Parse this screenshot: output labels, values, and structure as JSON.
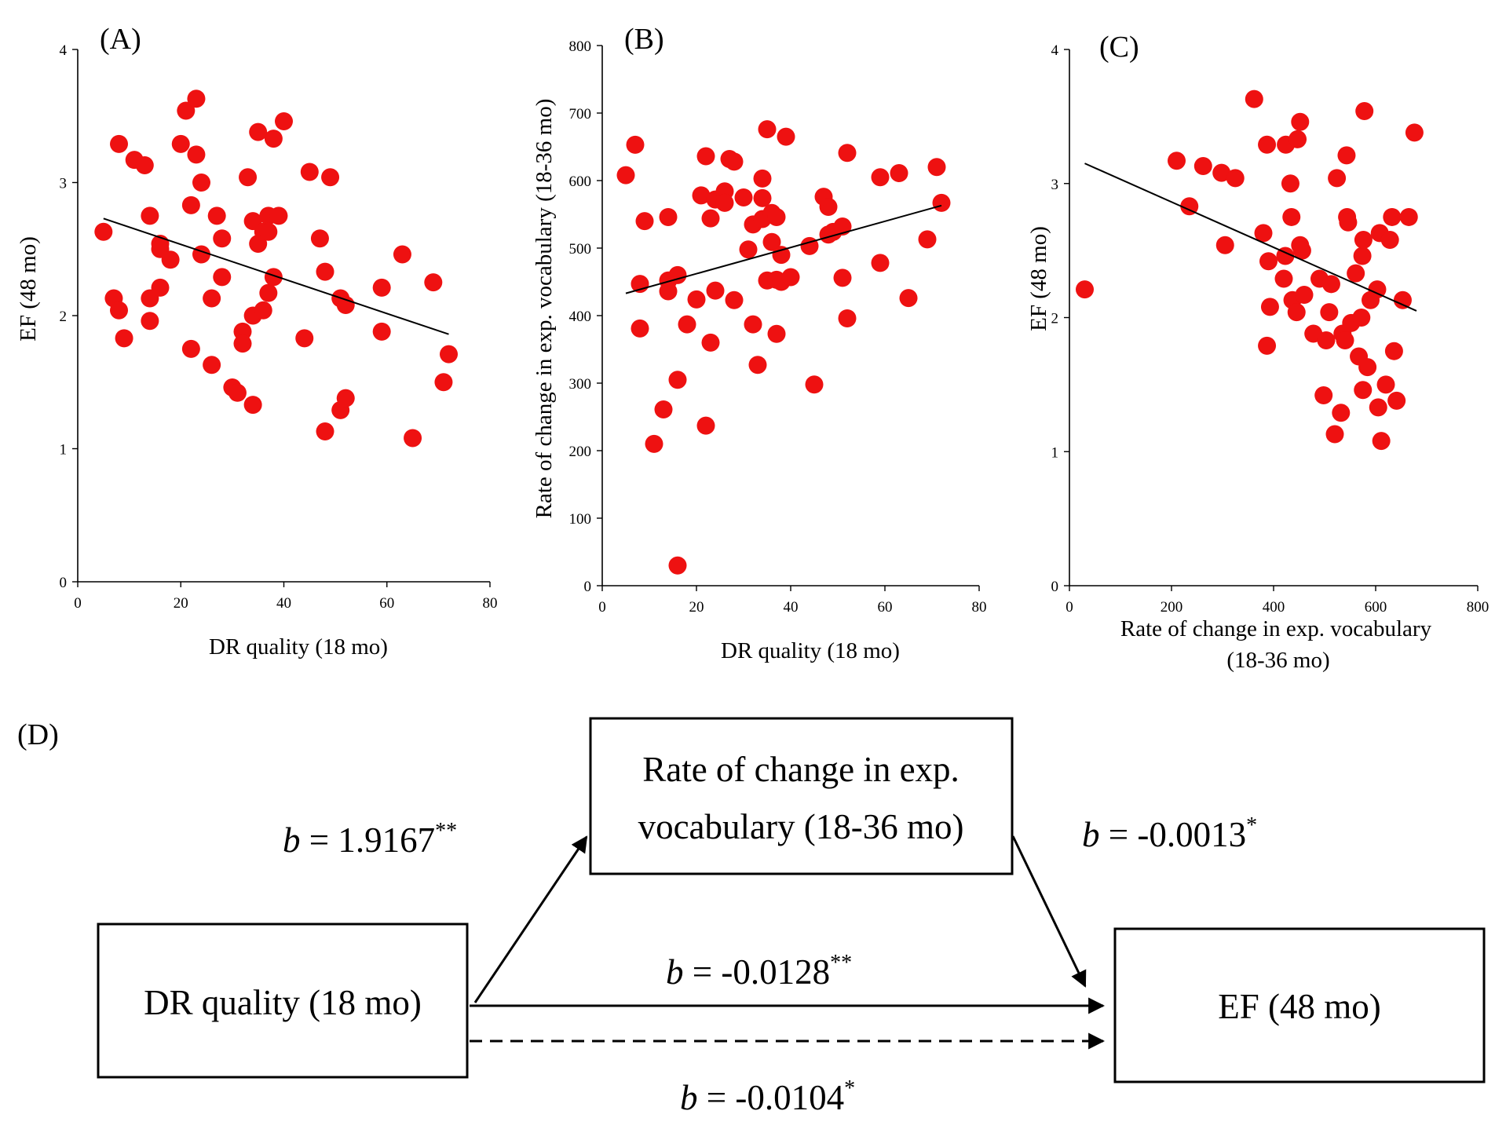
{
  "colors": {
    "point": "#ee1111",
    "line": "#000000"
  },
  "chart_data": [
    {
      "id": "A",
      "type": "scatter",
      "panel_label": "(A)",
      "xlabel": "DR quality (18 mo)",
      "ylabel": "EF (48 mo)",
      "xlim": [
        0,
        80
      ],
      "ylim": [
        0,
        4
      ],
      "xticks": [
        0,
        20,
        40,
        60,
        80
      ],
      "yticks": [
        0,
        1,
        2,
        3,
        4
      ],
      "trendline": [
        [
          5,
          2.73
        ],
        [
          72,
          1.86
        ]
      ],
      "points": [
        [
          5,
          2.63
        ],
        [
          7,
          2.13
        ],
        [
          8,
          2.04
        ],
        [
          8,
          3.29
        ],
        [
          9,
          1.83
        ],
        [
          11,
          3.17
        ],
        [
          13,
          3.13
        ],
        [
          14,
          2.75
        ],
        [
          14,
          2.13
        ],
        [
          14,
          1.96
        ],
        [
          16,
          2.54
        ],
        [
          16,
          2.5
        ],
        [
          16,
          2.21
        ],
        [
          18,
          2.42
        ],
        [
          20,
          3.29
        ],
        [
          21,
          3.54
        ],
        [
          22,
          2.83
        ],
        [
          22,
          1.75
        ],
        [
          23,
          3.21
        ],
        [
          23,
          3.63
        ],
        [
          24,
          3.0
        ],
        [
          24,
          2.46
        ],
        [
          26,
          2.13
        ],
        [
          26,
          1.63
        ],
        [
          27,
          2.75
        ],
        [
          28,
          2.58
        ],
        [
          28,
          2.29
        ],
        [
          30,
          1.46
        ],
        [
          31,
          1.42
        ],
        [
          32,
          1.88
        ],
        [
          32,
          1.79
        ],
        [
          33,
          3.04
        ],
        [
          34,
          2.71
        ],
        [
          34,
          2.0
        ],
        [
          34,
          1.33
        ],
        [
          35,
          3.38
        ],
        [
          35,
          2.54
        ],
        [
          36,
          2.04
        ],
        [
          36,
          2.63
        ],
        [
          37,
          2.75
        ],
        [
          37,
          2.63
        ],
        [
          37,
          2.17
        ],
        [
          38,
          3.33
        ],
        [
          38,
          2.29
        ],
        [
          39,
          2.75
        ],
        [
          40,
          3.46
        ],
        [
          44,
          1.83
        ],
        [
          45,
          3.08
        ],
        [
          47,
          2.58
        ],
        [
          48,
          1.13
        ],
        [
          48,
          2.33
        ],
        [
          49,
          3.04
        ],
        [
          51,
          2.13
        ],
        [
          51,
          1.29
        ],
        [
          52,
          2.08
        ],
        [
          52,
          1.38
        ],
        [
          59,
          2.21
        ],
        [
          59,
          1.88
        ],
        [
          63,
          2.46
        ],
        [
          65,
          1.08
        ],
        [
          69,
          2.25
        ],
        [
          71,
          1.5
        ],
        [
          72,
          1.71
        ]
      ]
    },
    {
      "id": "B",
      "type": "scatter",
      "panel_label": "(B)",
      "xlabel": "DR quality (18 mo)",
      "ylabel": "Rate of change in exp. vocabulary (18-36 mo)",
      "xlim": [
        0,
        80
      ],
      "ylim": [
        0,
        800
      ],
      "xticks": [
        0,
        20,
        40,
        60,
        80
      ],
      "yticks": [
        0,
        100,
        200,
        300,
        400,
        500,
        600,
        700,
        800
      ],
      "trendline": [
        [
          5,
          433
        ],
        [
          72,
          563
        ]
      ],
      "points": [
        [
          5,
          608
        ],
        [
          7,
          653
        ],
        [
          8,
          447
        ],
        [
          8,
          381
        ],
        [
          9,
          540
        ],
        [
          11,
          210
        ],
        [
          13,
          261
        ],
        [
          14,
          546
        ],
        [
          14,
          452
        ],
        [
          14,
          436
        ],
        [
          16,
          30
        ],
        [
          16,
          305
        ],
        [
          16,
          460
        ],
        [
          18,
          387
        ],
        [
          20,
          424
        ],
        [
          21,
          578
        ],
        [
          22,
          636
        ],
        [
          22,
          237
        ],
        [
          23,
          544
        ],
        [
          23,
          360
        ],
        [
          24,
          437
        ],
        [
          24,
          572
        ],
        [
          26,
          584
        ],
        [
          26,
          567
        ],
        [
          27,
          632
        ],
        [
          28,
          628
        ],
        [
          28,
          423
        ],
        [
          30,
          575
        ],
        [
          31,
          498
        ],
        [
          32,
          387
        ],
        [
          32,
          535
        ],
        [
          33,
          327
        ],
        [
          34,
          603
        ],
        [
          34,
          574
        ],
        [
          34,
          543
        ],
        [
          35,
          676
        ],
        [
          35,
          452
        ],
        [
          36,
          552
        ],
        [
          36,
          509
        ],
        [
          37,
          373
        ],
        [
          37,
          546
        ],
        [
          37,
          453
        ],
        [
          38,
          450
        ],
        [
          38,
          490
        ],
        [
          39,
          665
        ],
        [
          40,
          457
        ],
        [
          44,
          503
        ],
        [
          45,
          298
        ],
        [
          47,
          576
        ],
        [
          48,
          561
        ],
        [
          48,
          520
        ],
        [
          49,
          524
        ],
        [
          51,
          532
        ],
        [
          51,
          456
        ],
        [
          52,
          641
        ],
        [
          52,
          396
        ],
        [
          59,
          478
        ],
        [
          59,
          605
        ],
        [
          63,
          611
        ],
        [
          65,
          426
        ],
        [
          69,
          513
        ],
        [
          71,
          620
        ],
        [
          72,
          567
        ]
      ]
    },
    {
      "id": "C",
      "type": "scatter",
      "panel_label": "(C)",
      "xlabel": "Rate of change in exp. vocabulary",
      "xlabel2": "(18-36 mo)",
      "ylabel": "EF (48 mo)",
      "xlim": [
        0,
        800
      ],
      "ylim": [
        0,
        4
      ],
      "xticks": [
        0,
        200,
        400,
        600,
        800
      ],
      "yticks": [
        0,
        1,
        2,
        3,
        4
      ],
      "trendline": [
        [
          30,
          3.15
        ],
        [
          680,
          2.05
        ]
      ],
      "points": [
        [
          30,
          2.21
        ],
        [
          210,
          3.17
        ],
        [
          235,
          2.83
        ],
        [
          262,
          3.13
        ],
        [
          298,
          3.08
        ],
        [
          305,
          2.54
        ],
        [
          325,
          3.04
        ],
        [
          362,
          3.63
        ],
        [
          380,
          2.63
        ],
        [
          387,
          3.29
        ],
        [
          387,
          1.79
        ],
        [
          390,
          2.42
        ],
        [
          393,
          2.08
        ],
        [
          420,
          2.29
        ],
        [
          423,
          2.46
        ],
        [
          424,
          3.29
        ],
        [
          433,
          3.0
        ],
        [
          435,
          2.75
        ],
        [
          437,
          2.13
        ],
        [
          445,
          2.04
        ],
        [
          447,
          3.33
        ],
        [
          452,
          2.54
        ],
        [
          452,
          3.46
        ],
        [
          456,
          2.5
        ],
        [
          460,
          2.17
        ],
        [
          478,
          1.88
        ],
        [
          490,
          2.29
        ],
        [
          498,
          1.42
        ],
        [
          503,
          1.83
        ],
        [
          509,
          2.04
        ],
        [
          513,
          2.25
        ],
        [
          520,
          1.13
        ],
        [
          524,
          3.04
        ],
        [
          532,
          1.29
        ],
        [
          535,
          1.88
        ],
        [
          540,
          1.83
        ],
        [
          543,
          3.21
        ],
        [
          544,
          2.75
        ],
        [
          546,
          2.71
        ],
        [
          552,
          1.96
        ],
        [
          561,
          2.33
        ],
        [
          567,
          1.71
        ],
        [
          572,
          2.0
        ],
        [
          574,
          2.46
        ],
        [
          575,
          1.46
        ],
        [
          576,
          2.58
        ],
        [
          578,
          3.54
        ],
        [
          584,
          1.63
        ],
        [
          590,
          2.13
        ],
        [
          603,
          2.21
        ],
        [
          605,
          1.33
        ],
        [
          608,
          2.63
        ],
        [
          611,
          1.08
        ],
        [
          620,
          1.5
        ],
        [
          628,
          2.58
        ],
        [
          632,
          2.75
        ],
        [
          636,
          1.75
        ],
        [
          641,
          1.38
        ],
        [
          653,
          2.13
        ],
        [
          665,
          2.75
        ],
        [
          676,
          3.38
        ]
      ]
    }
  ],
  "mediation": {
    "panel_label": "(D)",
    "boxes": {
      "predictor": "DR quality (18 mo)",
      "mediator_line1": "Rate of change in exp.",
      "mediator_line2": "vocabulary (18-36 mo)",
      "outcome": "EF (48 mo)"
    },
    "paths": {
      "a": {
        "b": "b",
        "eq": " = 1.9167",
        "sig": "**"
      },
      "b": {
        "b": "b",
        "eq": " = -0.0013",
        "sig": "*"
      },
      "c": {
        "b": "b",
        "eq": " = -0.0128",
        "sig": "**"
      },
      "c_prime": {
        "b": "b",
        "eq": " = -0.0104",
        "sig": "*"
      }
    }
  }
}
